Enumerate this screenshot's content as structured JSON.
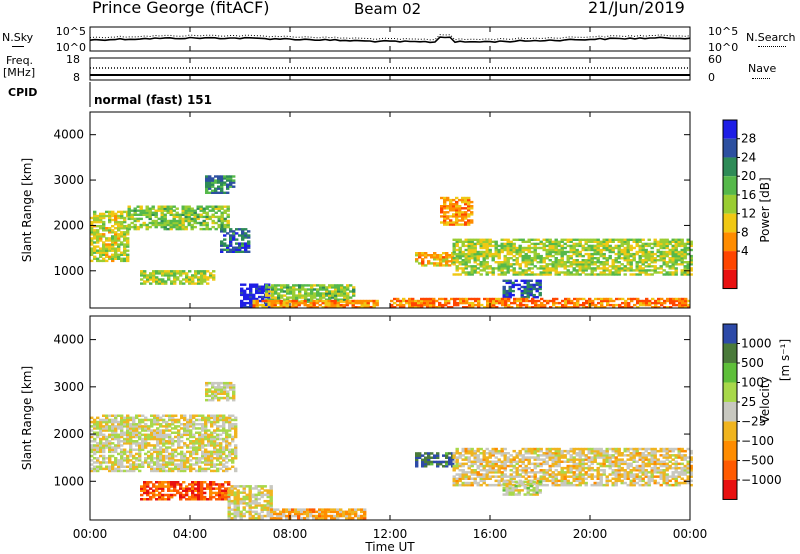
{
  "header": {
    "station": "Prince George (fitACF)",
    "beam": "Beam 02",
    "date": "21/Jun/2019"
  },
  "strips": {
    "nsky_label": "N.Sky",
    "nsearch_label": "N.Search",
    "noise_ticks_left": [
      "10^5",
      "10^0"
    ],
    "noise_ticks_right": [
      "10^5",
      "10^0"
    ],
    "freq_label": "Freq.",
    "freq_unit": "[MHz]",
    "freq_ticks": [
      "18",
      "8"
    ],
    "nave_label": "Nave",
    "nave_ticks": [
      "60",
      "0"
    ],
    "cpid_label": "CPID",
    "cpid_text": "normal (fast) 151"
  },
  "x_ticks": [
    "00:00",
    "04:00",
    "08:00",
    "12:00",
    "16:00",
    "20:00",
    "00:00"
  ],
  "x_label": "Time UT",
  "colors": {
    "power_scale": [
      "#1e1ee6",
      "#2d50a0",
      "#2e8b57",
      "#55b84a",
      "#9acd32",
      "#f0c814",
      "#ff8c00",
      "#ff4500",
      "#e81010"
    ],
    "velocity_scale": [
      "#2d4aa8",
      "#4a7a3a",
      "#5ebf3a",
      "#a8d84a",
      "#c8c8c0",
      "#f0b41e",
      "#ff8c00",
      "#ff5a00",
      "#e81010"
    ]
  },
  "power_legend": {
    "label": "Power [dB]",
    "ticks": [
      "28",
      "24",
      "20",
      "16",
      "12",
      "8",
      "4"
    ]
  },
  "velocity_legend": {
    "label": "Velocity",
    "unit": "[m s⁻¹]",
    "ticks": [
      "1000",
      "500",
      "100",
      "25",
      "−25",
      "−100",
      "−500",
      "−1000"
    ]
  },
  "chart_data": [
    {
      "type": "heatmap",
      "quantity": "power",
      "ylabel": "Slant Range [km]",
      "y_ticks": [
        "4000",
        "3000",
        "2000",
        "1000"
      ],
      "xlim": [
        0,
        24
      ],
      "ylim": [
        180,
        4500
      ],
      "colorbar_range": [
        0,
        31
      ],
      "regions": [
        {
          "t": [
            0.0,
            1.5
          ],
          "r": [
            1200,
            2300
          ],
          "level": 0.45
        },
        {
          "t": [
            1.5,
            5.5
          ],
          "r": [
            1900,
            2400
          ],
          "level": 0.55
        },
        {
          "t": [
            4.6,
            5.8
          ],
          "r": [
            2700,
            3100
          ],
          "level": 0.72
        },
        {
          "t": [
            5.2,
            6.3
          ],
          "r": [
            1400,
            1900
          ],
          "level": 0.8
        },
        {
          "t": [
            2.0,
            5.0
          ],
          "r": [
            700,
            1000
          ],
          "level": 0.5
        },
        {
          "t": [
            6.0,
            7.2
          ],
          "r": [
            180,
            700
          ],
          "level": 0.97
        },
        {
          "t": [
            7.0,
            10.5
          ],
          "r": [
            300,
            700
          ],
          "level": 0.55
        },
        {
          "t": [
            6.5,
            11.5
          ],
          "r": [
            180,
            350
          ],
          "level": 0.3
        },
        {
          "t": [
            13.0,
            14.5
          ],
          "r": [
            1100,
            1400
          ],
          "level": 0.35
        },
        {
          "t": [
            14.0,
            15.2
          ],
          "r": [
            2000,
            2600
          ],
          "level": 0.3
        },
        {
          "t": [
            14.5,
            24.0
          ],
          "r": [
            900,
            1700
          ],
          "level": 0.5
        },
        {
          "t": [
            16.5,
            18.0
          ],
          "r": [
            400,
            800
          ],
          "level": 0.85
        },
        {
          "t": [
            12.0,
            24.0
          ],
          "r": [
            180,
            400
          ],
          "level": 0.25
        }
      ]
    },
    {
      "type": "heatmap",
      "quantity": "velocity",
      "ylabel": "Slant Range [km]",
      "y_ticks": [
        "4000",
        "3000",
        "2000",
        "1000"
      ],
      "xlim": [
        0,
        24
      ],
      "ylim": [
        180,
        4500
      ],
      "regions": [
        {
          "t": [
            0.0,
            5.8
          ],
          "r": [
            1200,
            2400
          ],
          "level": 0.5
        },
        {
          "t": [
            4.6,
            5.8
          ],
          "r": [
            2700,
            3100
          ],
          "level": 0.5
        },
        {
          "t": [
            2.0,
            5.5
          ],
          "r": [
            600,
            1000
          ],
          "level": 0.15
        },
        {
          "t": [
            5.5,
            7.2
          ],
          "r": [
            200,
            900
          ],
          "level": 0.5
        },
        {
          "t": [
            7.2,
            11.0
          ],
          "r": [
            200,
            400
          ],
          "level": 0.35
        },
        {
          "t": [
            13.0,
            14.5
          ],
          "r": [
            1300,
            1600
          ],
          "level": 0.9
        },
        {
          "t": [
            14.5,
            24.0
          ],
          "r": [
            900,
            1700
          ],
          "level": 0.45
        },
        {
          "t": [
            16.5,
            18.0
          ],
          "r": [
            700,
            1000
          ],
          "level": 0.55
        }
      ]
    }
  ]
}
